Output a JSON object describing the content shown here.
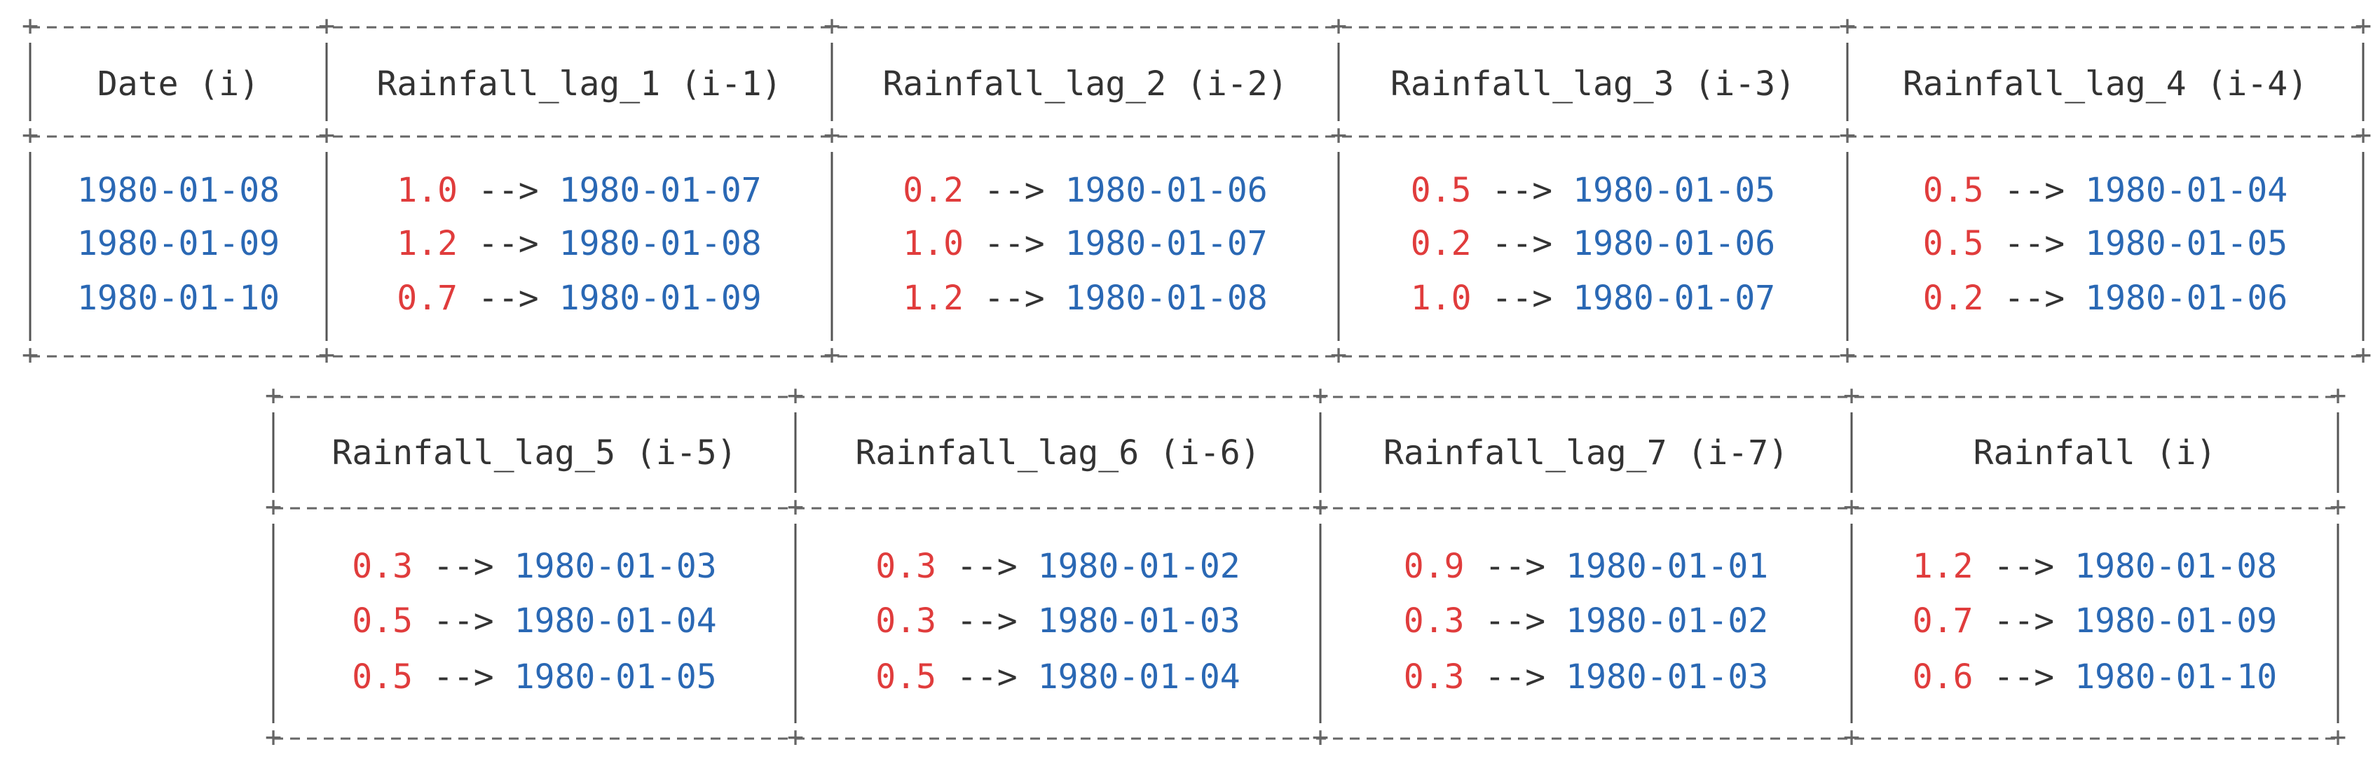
{
  "arrow": "-->",
  "tables": [
    {
      "headers": [
        "Date (i)",
        "Rainfall_lag_1 (i-1)",
        "Rainfall_lag_2 (i-2)",
        "Rainfall_lag_3 (i-3)",
        "Rainfall_lag_4 (i-4)"
      ],
      "rows": [
        [
          {
            "date": "1980-01-08"
          },
          {
            "value": "1.0",
            "date": "1980-01-07"
          },
          {
            "value": "0.2",
            "date": "1980-01-06"
          },
          {
            "value": "0.5",
            "date": "1980-01-05"
          },
          {
            "value": "0.5",
            "date": "1980-01-04"
          }
        ],
        [
          {
            "date": "1980-01-09"
          },
          {
            "value": "1.2",
            "date": "1980-01-08"
          },
          {
            "value": "1.0",
            "date": "1980-01-07"
          },
          {
            "value": "0.2",
            "date": "1980-01-06"
          },
          {
            "value": "0.5",
            "date": "1980-01-05"
          }
        ],
        [
          {
            "date": "1980-01-10"
          },
          {
            "value": "0.7",
            "date": "1980-01-09"
          },
          {
            "value": "1.2",
            "date": "1980-01-08"
          },
          {
            "value": "1.0",
            "date": "1980-01-07"
          },
          {
            "value": "0.2",
            "date": "1980-01-06"
          }
        ]
      ]
    },
    {
      "headers": [
        "Rainfall_lag_5 (i-5)",
        "Rainfall_lag_6 (i-6)",
        "Rainfall_lag_7 (i-7)",
        "Rainfall (i)"
      ],
      "rows": [
        [
          {
            "value": "0.3",
            "date": "1980-01-03"
          },
          {
            "value": "0.3",
            "date": "1980-01-02"
          },
          {
            "value": "0.9",
            "date": "1980-01-01"
          },
          {
            "value": "1.2",
            "date": "1980-01-08"
          }
        ],
        [
          {
            "value": "0.5",
            "date": "1980-01-04"
          },
          {
            "value": "0.3",
            "date": "1980-01-03"
          },
          {
            "value": "0.3",
            "date": "1980-01-02"
          },
          {
            "value": "0.7",
            "date": "1980-01-09"
          }
        ],
        [
          {
            "value": "0.5",
            "date": "1980-01-05"
          },
          {
            "value": "0.5",
            "date": "1980-01-04"
          },
          {
            "value": "0.3",
            "date": "1980-01-03"
          },
          {
            "value": "0.6",
            "date": "1980-01-10"
          }
        ]
      ]
    }
  ]
}
